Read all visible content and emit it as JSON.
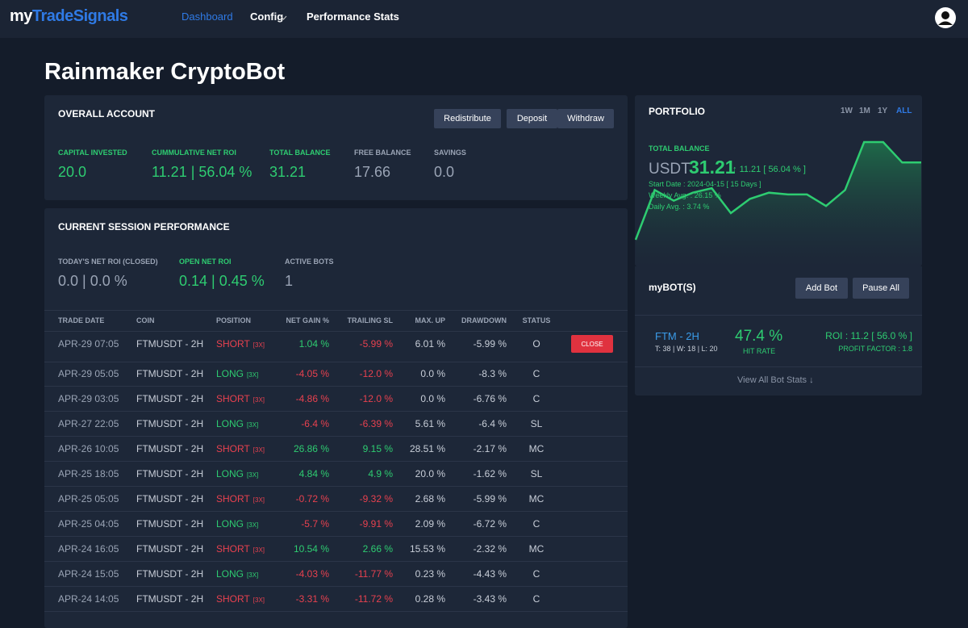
{
  "nav": {
    "brand_prefix": "my",
    "brand_suffix": "TradeSignals",
    "links": [
      "Dashboard",
      "Config",
      "Performance Stats"
    ]
  },
  "page_title": "Rainmaker CryptoBot",
  "overall": {
    "title": "OVERALL ACCOUNT",
    "buttons": [
      "Redistribute",
      "Deposit",
      "Withdraw"
    ],
    "stats": [
      {
        "label": "CAPITAL INVESTED",
        "value": "20.0",
        "color": "#2ecc71"
      },
      {
        "label": "CUMMULATIVE NET ROI",
        "value": "11.21 | 56.04 %",
        "color": "#2ecc71"
      },
      {
        "label": "TOTAL BALANCE",
        "value": "31.21",
        "color": "#2ecc71"
      },
      {
        "label": "FREE BALANCE",
        "value": "17.66",
        "color": "#9aa4b5"
      },
      {
        "label": "SAVINGS",
        "value": "0.0",
        "color": "#9aa4b5"
      }
    ]
  },
  "session": {
    "title": "CURRENT SESSION PERFORMANCE",
    "stats": [
      {
        "label": "TODAY'S NET ROI (CLOSED)",
        "value": "0.0 | 0.0 %",
        "color": "#9aa4b5"
      },
      {
        "label": "OPEN NET ROI",
        "value": "0.14 | 0.45 %",
        "color": "#2ecc71"
      },
      {
        "label": "ACTIVE BOTS",
        "value": "1",
        "color": "#9aa4b5"
      }
    ]
  },
  "table": {
    "headers": [
      "TRADE DATE",
      "COIN",
      "POSITION",
      "NET GAIN %",
      "TRAILING SL",
      "MAX. UP",
      "DRAWDOWN",
      "STATUS"
    ],
    "close_button": "CLOSE",
    "rows": [
      [
        "APR-29 07:05",
        "FTMUSDT - 2H",
        "SHORT",
        "[3X]",
        "1.04 %",
        "-5.99 %",
        "6.01 %",
        "-5.99 %",
        "O"
      ],
      [
        "APR-29 05:05",
        "FTMUSDT - 2H",
        "LONG",
        "[3X]",
        "-4.05 %",
        "-12.0 %",
        "0.0 %",
        "-8.3 %",
        "C"
      ],
      [
        "APR-29 03:05",
        "FTMUSDT - 2H",
        "SHORT",
        "[3X]",
        "-4.86 %",
        "-12.0 %",
        "0.0 %",
        "-6.76 %",
        "C"
      ],
      [
        "APR-27 22:05",
        "FTMUSDT - 2H",
        "LONG",
        "[3X]",
        "-6.4 %",
        "-6.39 %",
        "5.61 %",
        "-6.4 %",
        "SL"
      ],
      [
        "APR-26 10:05",
        "FTMUSDT - 2H",
        "SHORT",
        "[3X]",
        "26.86 %",
        "9.15 %",
        "28.51 %",
        "-2.17 %",
        "MC"
      ],
      [
        "APR-25 18:05",
        "FTMUSDT - 2H",
        "LONG",
        "[3X]",
        "4.84 %",
        "4.9 %",
        "20.0 %",
        "-1.62 %",
        "SL"
      ],
      [
        "APR-25 05:05",
        "FTMUSDT - 2H",
        "SHORT",
        "[3X]",
        "-0.72 %",
        "-9.32 %",
        "2.68 %",
        "-5.99 %",
        "MC"
      ],
      [
        "APR-25 04:05",
        "FTMUSDT - 2H",
        "LONG",
        "[3X]",
        "-5.7 %",
        "-9.91 %",
        "2.09 %",
        "-6.72 %",
        "C"
      ],
      [
        "APR-24 16:05",
        "FTMUSDT - 2H",
        "SHORT",
        "[3X]",
        "10.54 %",
        "2.66 %",
        "15.53 %",
        "-2.32 %",
        "MC"
      ],
      [
        "APR-24 15:05",
        "FTMUSDT - 2H",
        "LONG",
        "[3X]",
        "-4.03 %",
        "-11.77 %",
        "0.23 %",
        "-4.43 %",
        "C"
      ],
      [
        "APR-24 14:05",
        "FTMUSDT - 2H",
        "SHORT",
        "[3X]",
        "-3.31 %",
        "-11.72 %",
        "0.28 %",
        "-3.43 %",
        "C"
      ]
    ]
  },
  "portfolio": {
    "title": "PORTFOLIO",
    "ranges": [
      "1W",
      "1M",
      "1Y",
      "ALL"
    ],
    "active_range": 3,
    "balance_label": "TOTAL BALANCE",
    "currency": "USDT",
    "balance": "31.21",
    "change": "11.21 [ 56.04 % ]",
    "start_date": "Start Date : 2024-04-15 [ 15 Days ]",
    "weekly_avg": "Weekly Avg. : 26.15 %",
    "daily_avg": "Daily Avg. : 3.74 %",
    "chart": {
      "type": "line",
      "color": "#2ecc71",
      "ylim": [
        -20,
        130
      ],
      "values": [
        10,
        66,
        54,
        63,
        68,
        40,
        56,
        63,
        61,
        61,
        48,
        66,
        120,
        120,
        97,
        97
      ]
    }
  },
  "bots": {
    "title": "myBOT(S)",
    "buttons": [
      "Add Bot",
      "Pause All"
    ],
    "bot": {
      "name": "FTM - 2H",
      "counts": "T: 38 | W: 18 | L: 20",
      "hit_rate": "47.4 %",
      "hit_label": "HIT RATE",
      "roi": "ROI : 11.2 [ 56.0 % ]",
      "profit_factor": "PROFIT FACTOR : 1.8"
    },
    "link": "View All Bot Stats"
  }
}
